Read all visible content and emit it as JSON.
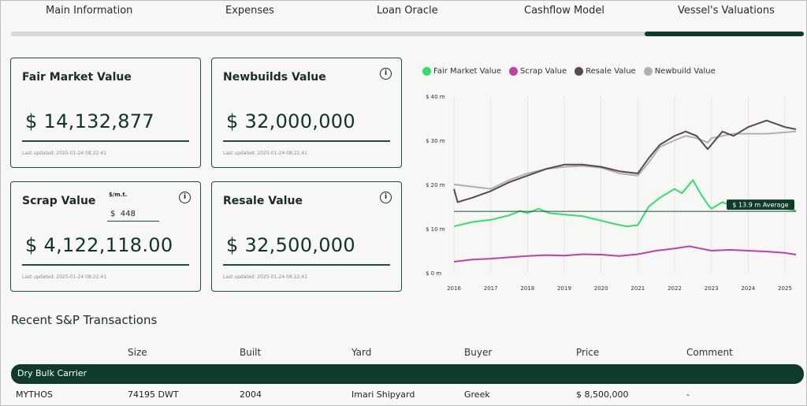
{
  "tabs": [
    {
      "label": "Main Information"
    },
    {
      "label": "Expenses"
    },
    {
      "label": "Loan Oracle"
    },
    {
      "label": "Cashflow Model"
    },
    {
      "label": "Vessel's Valuations"
    }
  ],
  "cards": {
    "fair_market": {
      "title": "Fair Market Value",
      "value": "$ 14,132,877",
      "updated": "Last updated: 2025-01-24 08:22:41"
    },
    "newbuilds": {
      "title": "Newbuilds Value",
      "value": "$ 32,000,000",
      "updated": "Last updated: 2025-01-24 08:22:41"
    },
    "scrap": {
      "title": "Scrap Value",
      "value": "$ 4,122,118.00",
      "updated": "Last updated: 2025-01-24 08:22:41",
      "unit_label": "$/m.t.",
      "unit_value": "$  448"
    },
    "resale": {
      "title": "Resale Value",
      "value": "$ 32,500,000",
      "updated": "Last updated: 2025-01-24 08:22:41"
    }
  },
  "icons": {
    "info": "info-icon"
  },
  "colors": {
    "fair_market": "#2ee06e",
    "scrap": "#c040a8",
    "resale": "#5a4a4e",
    "newbuild": "#b0b0b0",
    "accent": "#0e3b2a"
  },
  "chart_data": {
    "type": "line",
    "x_ticks": [
      "2016",
      "2017",
      "2018",
      "2019",
      "2020",
      "2021",
      "2022",
      "2023",
      "2024",
      "2025"
    ],
    "y_ticks": [
      "$ 0 m",
      "$ 10 m",
      "$ 20 m",
      "$ 30 m",
      "$ 40 m"
    ],
    "ylim": [
      0,
      40
    ],
    "xlim": [
      2016,
      2025.3
    ],
    "grid": true,
    "legend_position": "top",
    "average": {
      "value": 13.9,
      "label": "$ 13.9 m Average"
    },
    "series": [
      {
        "name": "Fair Market Value",
        "points": [
          [
            2016,
            10.5
          ],
          [
            2016.5,
            11.5
          ],
          [
            2017,
            12
          ],
          [
            2017.5,
            13
          ],
          [
            2017.8,
            14
          ],
          [
            2018,
            13.5
          ],
          [
            2018.3,
            14.5
          ],
          [
            2018.6,
            13.5
          ],
          [
            2019,
            13.2
          ],
          [
            2019.5,
            12.8
          ],
          [
            2020,
            11.8
          ],
          [
            2020.4,
            11
          ],
          [
            2020.7,
            10.5
          ],
          [
            2021,
            10.8
          ],
          [
            2021.3,
            15
          ],
          [
            2021.6,
            17
          ],
          [
            2022,
            19
          ],
          [
            2022.2,
            18
          ],
          [
            2022.5,
            21
          ],
          [
            2022.7,
            18
          ],
          [
            2022.9,
            15.5
          ],
          [
            2023,
            14.5
          ],
          [
            2023.3,
            16
          ],
          [
            2023.6,
            15
          ],
          [
            2024,
            15.5
          ],
          [
            2024.5,
            15
          ],
          [
            2025,
            14.5
          ],
          [
            2025.3,
            14.1
          ]
        ]
      },
      {
        "name": "Scrap Value",
        "points": [
          [
            2016,
            2.5
          ],
          [
            2016.5,
            3
          ],
          [
            2017,
            3.2
          ],
          [
            2017.5,
            3.5
          ],
          [
            2018,
            3.8
          ],
          [
            2018.5,
            4
          ],
          [
            2019,
            3.9
          ],
          [
            2019.5,
            4.2
          ],
          [
            2020,
            4.1
          ],
          [
            2020.5,
            3.8
          ],
          [
            2021,
            4.2
          ],
          [
            2021.5,
            5
          ],
          [
            2022,
            5.5
          ],
          [
            2022.4,
            6
          ],
          [
            2022.7,
            5.5
          ],
          [
            2023,
            5
          ],
          [
            2023.5,
            5.2
          ],
          [
            2024,
            5
          ],
          [
            2024.5,
            4.8
          ],
          [
            2025,
            4.5
          ],
          [
            2025.3,
            4.1
          ]
        ]
      },
      {
        "name": "Resale Value",
        "points": [
          [
            2016,
            19
          ],
          [
            2016.1,
            16
          ],
          [
            2016.5,
            17
          ],
          [
            2017,
            18.5
          ],
          [
            2017.5,
            20.5
          ],
          [
            2018,
            22
          ],
          [
            2018.5,
            23.5
          ],
          [
            2019,
            24.5
          ],
          [
            2019.5,
            24.5
          ],
          [
            2020,
            24
          ],
          [
            2020.5,
            23
          ],
          [
            2021,
            22.5
          ],
          [
            2021.3,
            26
          ],
          [
            2021.6,
            29
          ],
          [
            2022,
            31
          ],
          [
            2022.3,
            32
          ],
          [
            2022.6,
            31
          ],
          [
            2022.9,
            28
          ],
          [
            2023,
            29
          ],
          [
            2023.3,
            32
          ],
          [
            2023.6,
            31
          ],
          [
            2024,
            33
          ],
          [
            2024.5,
            34.5
          ],
          [
            2025,
            33
          ],
          [
            2025.3,
            32.5
          ]
        ]
      },
      {
        "name": "Newbuild Value",
        "points": [
          [
            2016,
            20
          ],
          [
            2016.5,
            19.5
          ],
          [
            2017,
            19
          ],
          [
            2017.5,
            21
          ],
          [
            2018,
            22.5
          ],
          [
            2018.5,
            23.5
          ],
          [
            2019,
            24
          ],
          [
            2019.5,
            24.2
          ],
          [
            2020,
            23.8
          ],
          [
            2020.5,
            22.5
          ],
          [
            2021,
            22
          ],
          [
            2021.3,
            25
          ],
          [
            2021.6,
            28.5
          ],
          [
            2022,
            30
          ],
          [
            2022.3,
            31
          ],
          [
            2022.6,
            30.5
          ],
          [
            2022.9,
            29.5
          ],
          [
            2023,
            30.5
          ],
          [
            2023.3,
            31
          ],
          [
            2023.6,
            31.5
          ],
          [
            2024,
            31.5
          ],
          [
            2024.5,
            31.5
          ],
          [
            2025,
            31.8
          ],
          [
            2025.3,
            32
          ]
        ]
      }
    ]
  },
  "transactions": {
    "title": "Recent S&P Transactions",
    "headers": {
      "size": "Size",
      "built": "Built",
      "yard": "Yard",
      "buyer": "Buyer",
      "price": "Price",
      "comment": "Comment"
    },
    "group": "Dry Bulk Carrier",
    "rows": [
      {
        "name": "MYTHOS",
        "size": "74195 DWT",
        "built": "2004",
        "yard": "Imari Shipyard",
        "buyer": "Greek",
        "price": "$ 8,500,000",
        "comment": "-"
      }
    ]
  }
}
